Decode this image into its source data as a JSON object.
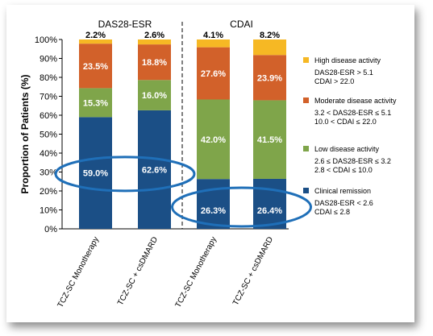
{
  "chart_data": {
    "type": "bar",
    "stacked": true,
    "ylabel": "Proportion of Patients (%)",
    "ylim": [
      0,
      100
    ],
    "yticks": [
      "0%",
      "10%",
      "20%",
      "30%",
      "40%",
      "50%",
      "60%",
      "70%",
      "80%",
      "90%",
      "100%"
    ],
    "groups": [
      {
        "label": "DAS28-ESR",
        "categories": [
          "TCZ-SC Monotherapy",
          "TCZ-SC + csDMARD"
        ]
      },
      {
        "label": "CDAI",
        "categories": [
          "TCZ-SC Monotherapy",
          "TCZ-SC + csDMARD"
        ]
      }
    ],
    "categories": [
      "TCZ-SC Monotherapy",
      "TCZ-SC + csDMARD",
      "TCZ-SC Monotherapy",
      "TCZ-SC + csDMARD"
    ],
    "series": [
      {
        "name": "Clinical remission",
        "color": "#1b4f86",
        "values": [
          59.0,
          62.6,
          26.3,
          26.4
        ],
        "labels": [
          "59.0%",
          "62.6%",
          "26.3%",
          "26.4%"
        ]
      },
      {
        "name": "Low disease activity",
        "color": "#7fa54a",
        "values": [
          15.3,
          16.0,
          42.0,
          41.5
        ],
        "labels": [
          "15.3%",
          "16.0%",
          "42.0%",
          "41.5%"
        ]
      },
      {
        "name": "Moderate disease activity",
        "color": "#d2612a",
        "values": [
          23.5,
          18.8,
          27.6,
          23.9
        ],
        "labels": [
          "23.5%",
          "18.8%",
          "27.6%",
          "23.9%"
        ]
      },
      {
        "name": "High disease activity",
        "color": "#f6b824",
        "values": [
          2.2,
          2.6,
          4.1,
          8.2
        ],
        "labels": [
          "2.2%",
          "2.6%",
          "4.1%",
          "8.2%"
        ]
      }
    ],
    "legend": {
      "placement": "right",
      "items": [
        {
          "name": "High disease activity",
          "color": "#f6b824",
          "lines": [
            "DAS28-ESR > 5.1",
            "CDAI > 22.0"
          ]
        },
        {
          "name": "Moderate disease activity",
          "color": "#d2612a",
          "lines": [
            "3.2 < DAS28-ESR ≤ 5.1",
            "10.0 < CDAI ≤ 22.0"
          ]
        },
        {
          "name": "Low disease activity",
          "color": "#7fa54a",
          "lines": [
            "2.6 ≤ DAS28-ESR ≤ 3.2",
            "2.8 < CDAI ≤ 10.0"
          ]
        },
        {
          "name": "Clinical remission",
          "color": "#1b4f86",
          "lines": [
            "DAS28-ESR < 2.6",
            "CDAI ≤ 2.8"
          ]
        }
      ]
    },
    "highlight_color": "#1f6fb8",
    "grid": false
  }
}
